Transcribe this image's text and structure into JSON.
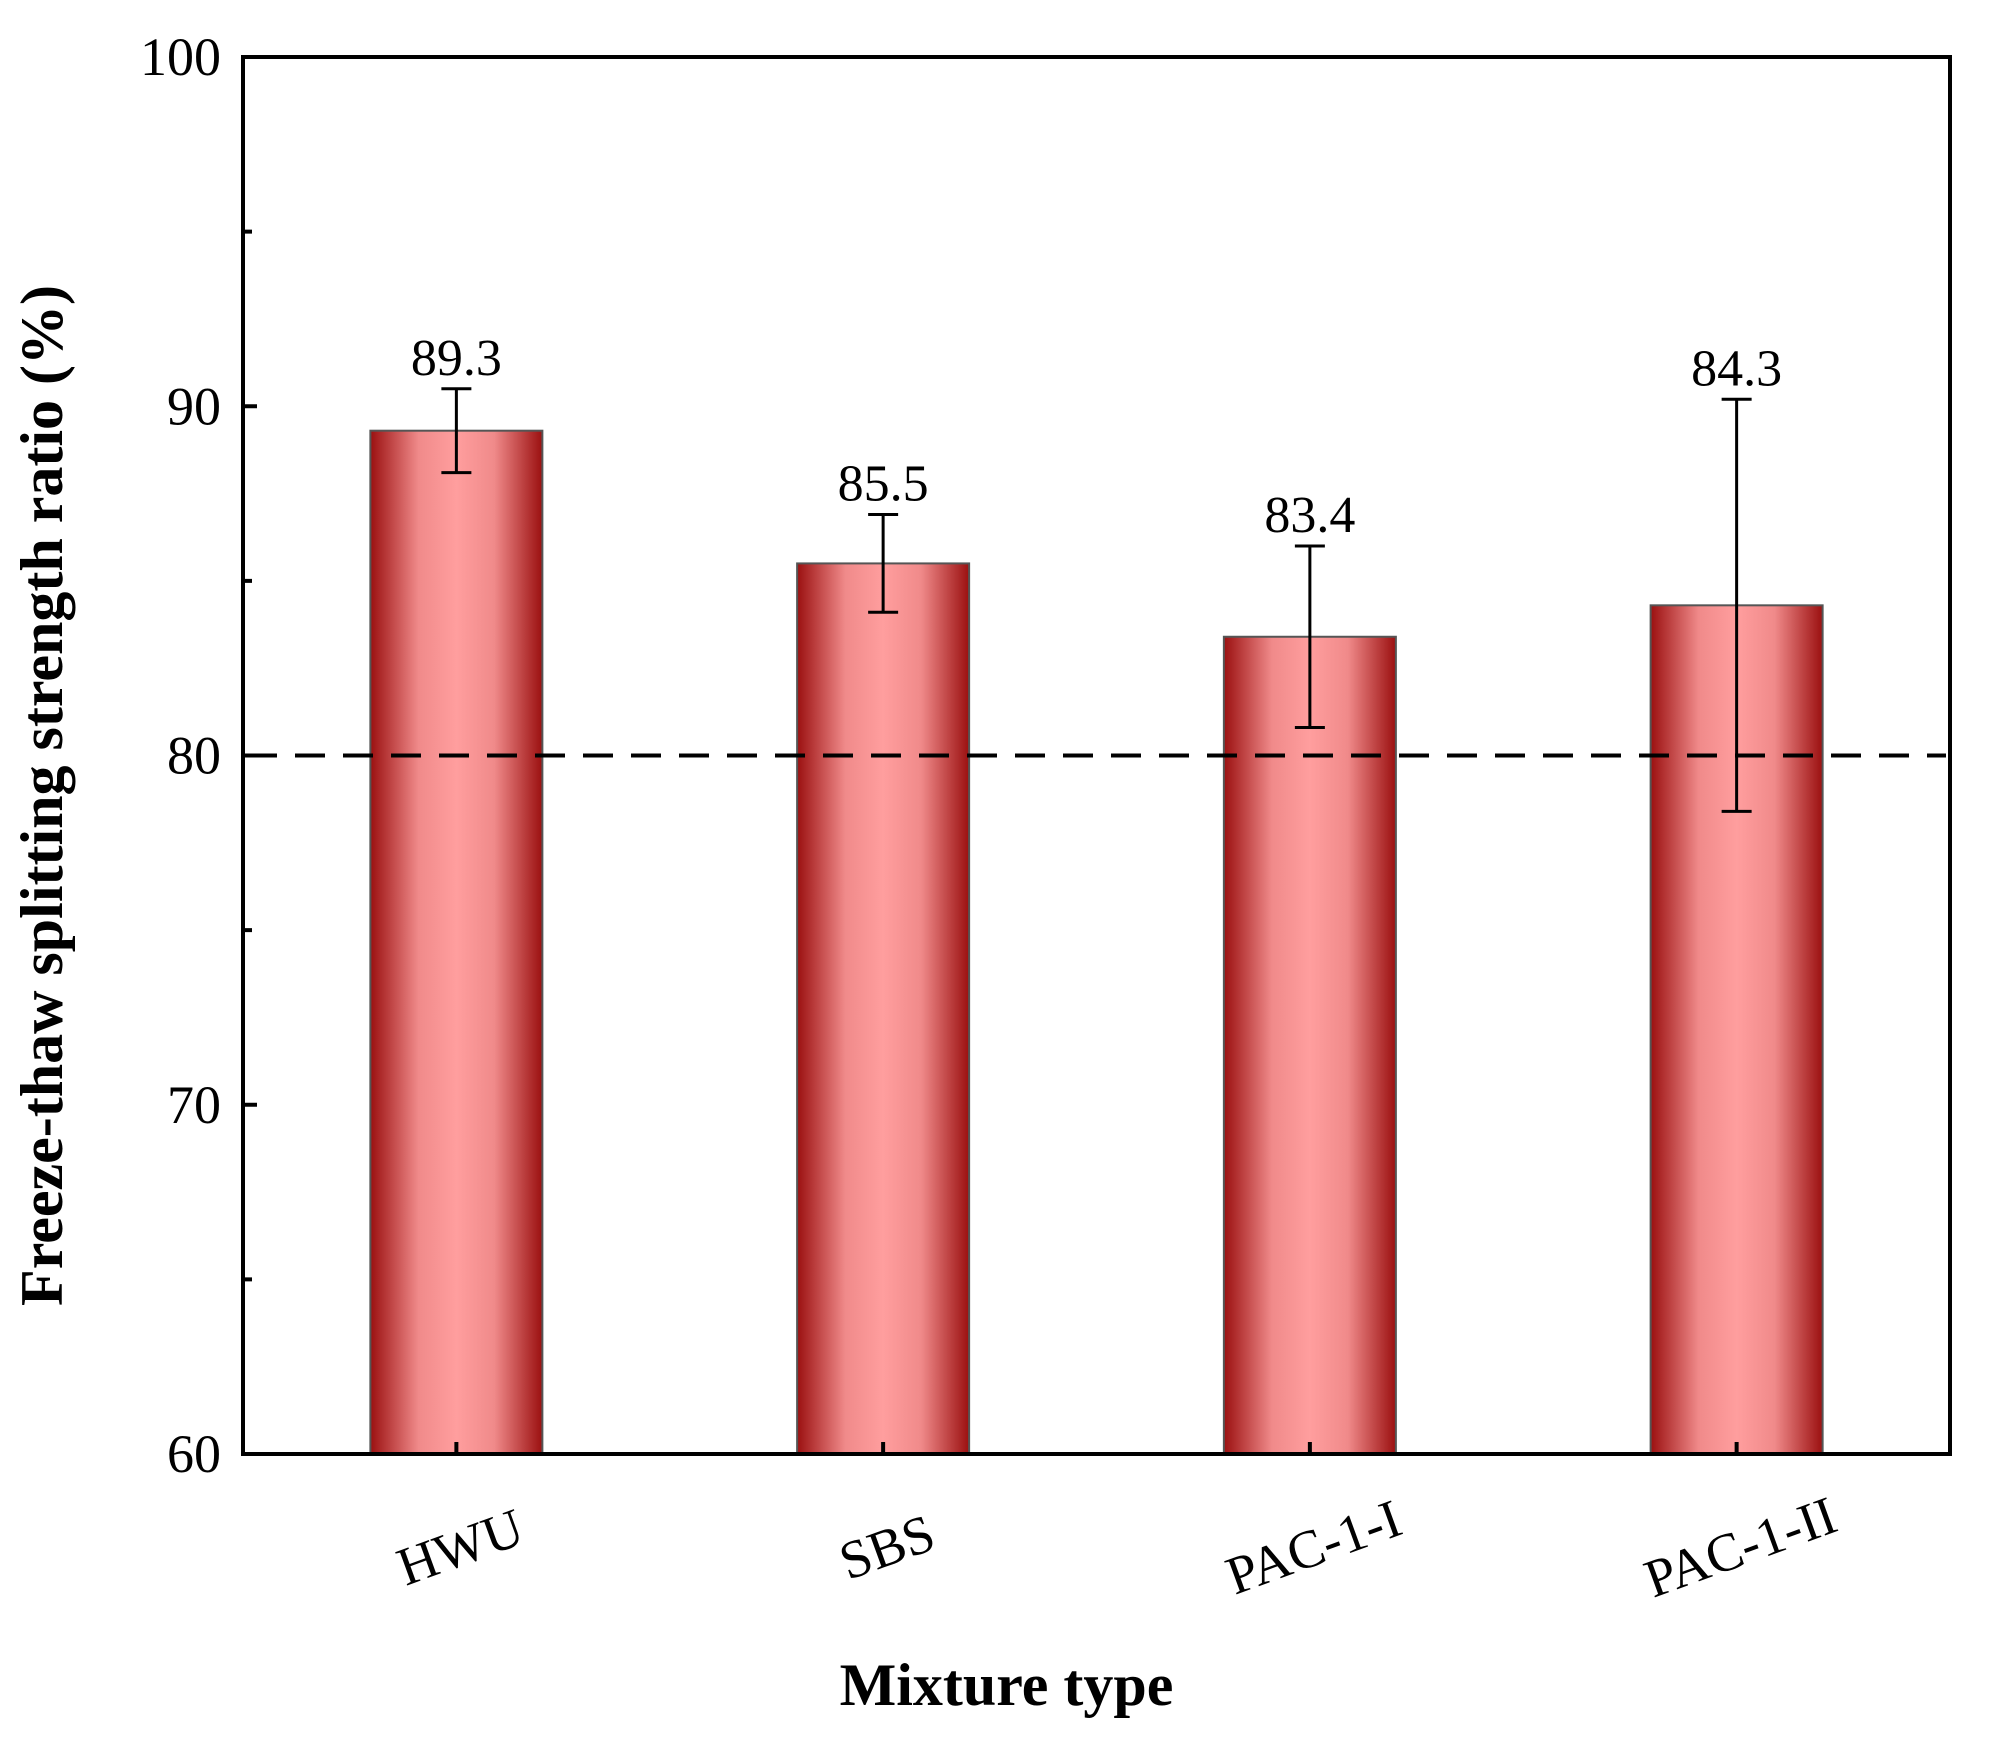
{
  "chart_data": {
    "type": "bar",
    "categories": [
      "HWU",
      "SBS",
      "PAC-1-I",
      "PAC-1-II"
    ],
    "values": [
      89.3,
      85.5,
      83.4,
      84.3
    ],
    "error_bars": [
      {
        "low": 88.1,
        "high": 90.5
      },
      {
        "low": 84.1,
        "high": 86.9
      },
      {
        "low": 80.8,
        "high": 86.0
      },
      {
        "low": 78.4,
        "high": 90.2
      }
    ],
    "data_labels": [
      "89.3",
      "85.5",
      "83.4",
      "84.3"
    ],
    "xlabel": "Mixture type",
    "ylabel": "Freeze-thaw splitting strength ratio (%)",
    "ylim": [
      60,
      100
    ],
    "y_major_ticks": [
      60,
      70,
      80,
      90,
      100
    ],
    "y_tick_labels": [
      "60",
      "70",
      "80",
      "90",
      "100"
    ],
    "y_minor_ticks": [
      65,
      75,
      85,
      95
    ],
    "reference_line": {
      "y": 80,
      "style": "dashed"
    },
    "grid": false,
    "legend": "none",
    "colors": {
      "bar_edge": "#9b1010",
      "bar_center": "#ff9e9e",
      "bar_outline": "#555555",
      "axis": "#000000"
    }
  }
}
